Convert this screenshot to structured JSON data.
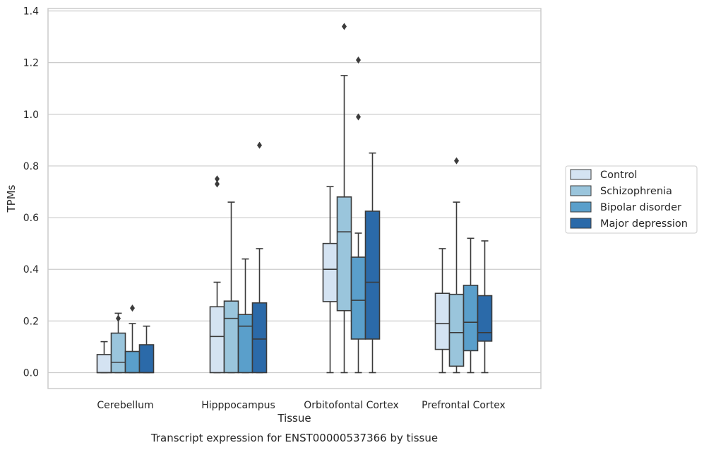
{
  "caption": "Transcript expression for ENST00000537366 by tissue",
  "chart_data": {
    "type": "box",
    "title": "",
    "xlabel": "Tissue",
    "ylabel": "TPMs",
    "ylim": [
      -0.06,
      1.41
    ],
    "yticks": [
      0.0,
      0.2,
      0.4,
      0.6,
      0.8,
      1.0,
      1.2,
      1.4
    ],
    "ytick_labels": [
      "0.0",
      "0.2",
      "0.4",
      "0.6",
      "0.8",
      "1.0",
      "1.2",
      "1.4"
    ],
    "grid": "horizontal",
    "legend_position": "right",
    "categories": [
      "Cerebellum",
      "Hipppocampus",
      "Orbitofontal Cortex",
      "Prefrontal Cortex"
    ],
    "series": [
      {
        "name": "Control",
        "color": "#d4e3f2",
        "boxes": [
          {
            "whisker_low": 0.0,
            "q1": 0.0,
            "median": 0.0,
            "q3": 0.07,
            "whisker_high": 0.12,
            "outliers": []
          },
          {
            "whisker_low": 0.0,
            "q1": 0.0,
            "median": 0.14,
            "q3": 0.255,
            "whisker_high": 0.35,
            "outliers": [
              0.73,
              0.75
            ]
          },
          {
            "whisker_low": 0.0,
            "q1": 0.275,
            "median": 0.4,
            "q3": 0.5,
            "whisker_high": 0.72,
            "outliers": []
          },
          {
            "whisker_low": 0.0,
            "q1": 0.09,
            "median": 0.19,
            "q3": 0.307,
            "whisker_high": 0.48,
            "outliers": []
          }
        ]
      },
      {
        "name": "Schizophrenia",
        "color": "#9ac5dc",
        "boxes": [
          {
            "whisker_low": 0.0,
            "q1": 0.0,
            "median": 0.04,
            "q3": 0.153,
            "whisker_high": 0.23,
            "outliers": [
              0.21
            ]
          },
          {
            "whisker_low": 0.0,
            "q1": 0.0,
            "median": 0.21,
            "q3": 0.277,
            "whisker_high": 0.66,
            "outliers": []
          },
          {
            "whisker_low": 0.0,
            "q1": 0.24,
            "median": 0.545,
            "q3": 0.68,
            "whisker_high": 1.15,
            "outliers": [
              1.34
            ]
          },
          {
            "whisker_low": 0.0,
            "q1": 0.025,
            "median": 0.155,
            "q3": 0.303,
            "whisker_high": 0.66,
            "outliers": [
              0.82
            ]
          }
        ]
      },
      {
        "name": "Bipolar disorder",
        "color": "#5a9fcb",
        "boxes": [
          {
            "whisker_low": 0.0,
            "q1": 0.0,
            "median": 0.0,
            "q3": 0.082,
            "whisker_high": 0.19,
            "outliers": [
              0.25
            ]
          },
          {
            "whisker_low": 0.0,
            "q1": 0.0,
            "median": 0.18,
            "q3": 0.225,
            "whisker_high": 0.44,
            "outliers": []
          },
          {
            "whisker_low": 0.0,
            "q1": 0.13,
            "median": 0.28,
            "q3": 0.447,
            "whisker_high": 0.54,
            "outliers": [
              0.99,
              1.21
            ]
          },
          {
            "whisker_low": 0.0,
            "q1": 0.085,
            "median": 0.195,
            "q3": 0.338,
            "whisker_high": 0.52,
            "outliers": []
          }
        ]
      },
      {
        "name": "Major depression",
        "color": "#2b6aa9",
        "boxes": [
          {
            "whisker_low": 0.0,
            "q1": 0.0,
            "median": 0.0,
            "q3": 0.108,
            "whisker_high": 0.18,
            "outliers": []
          },
          {
            "whisker_low": 0.0,
            "q1": 0.0,
            "median": 0.13,
            "q3": 0.27,
            "whisker_high": 0.48,
            "outliers": [
              0.88
            ]
          },
          {
            "whisker_low": 0.0,
            "q1": 0.13,
            "median": 0.35,
            "q3": 0.625,
            "whisker_high": 0.85,
            "outliers": []
          },
          {
            "whisker_low": 0.0,
            "q1": 0.122,
            "median": 0.155,
            "q3": 0.298,
            "whisker_high": 0.51,
            "outliers": []
          }
        ]
      }
    ]
  }
}
